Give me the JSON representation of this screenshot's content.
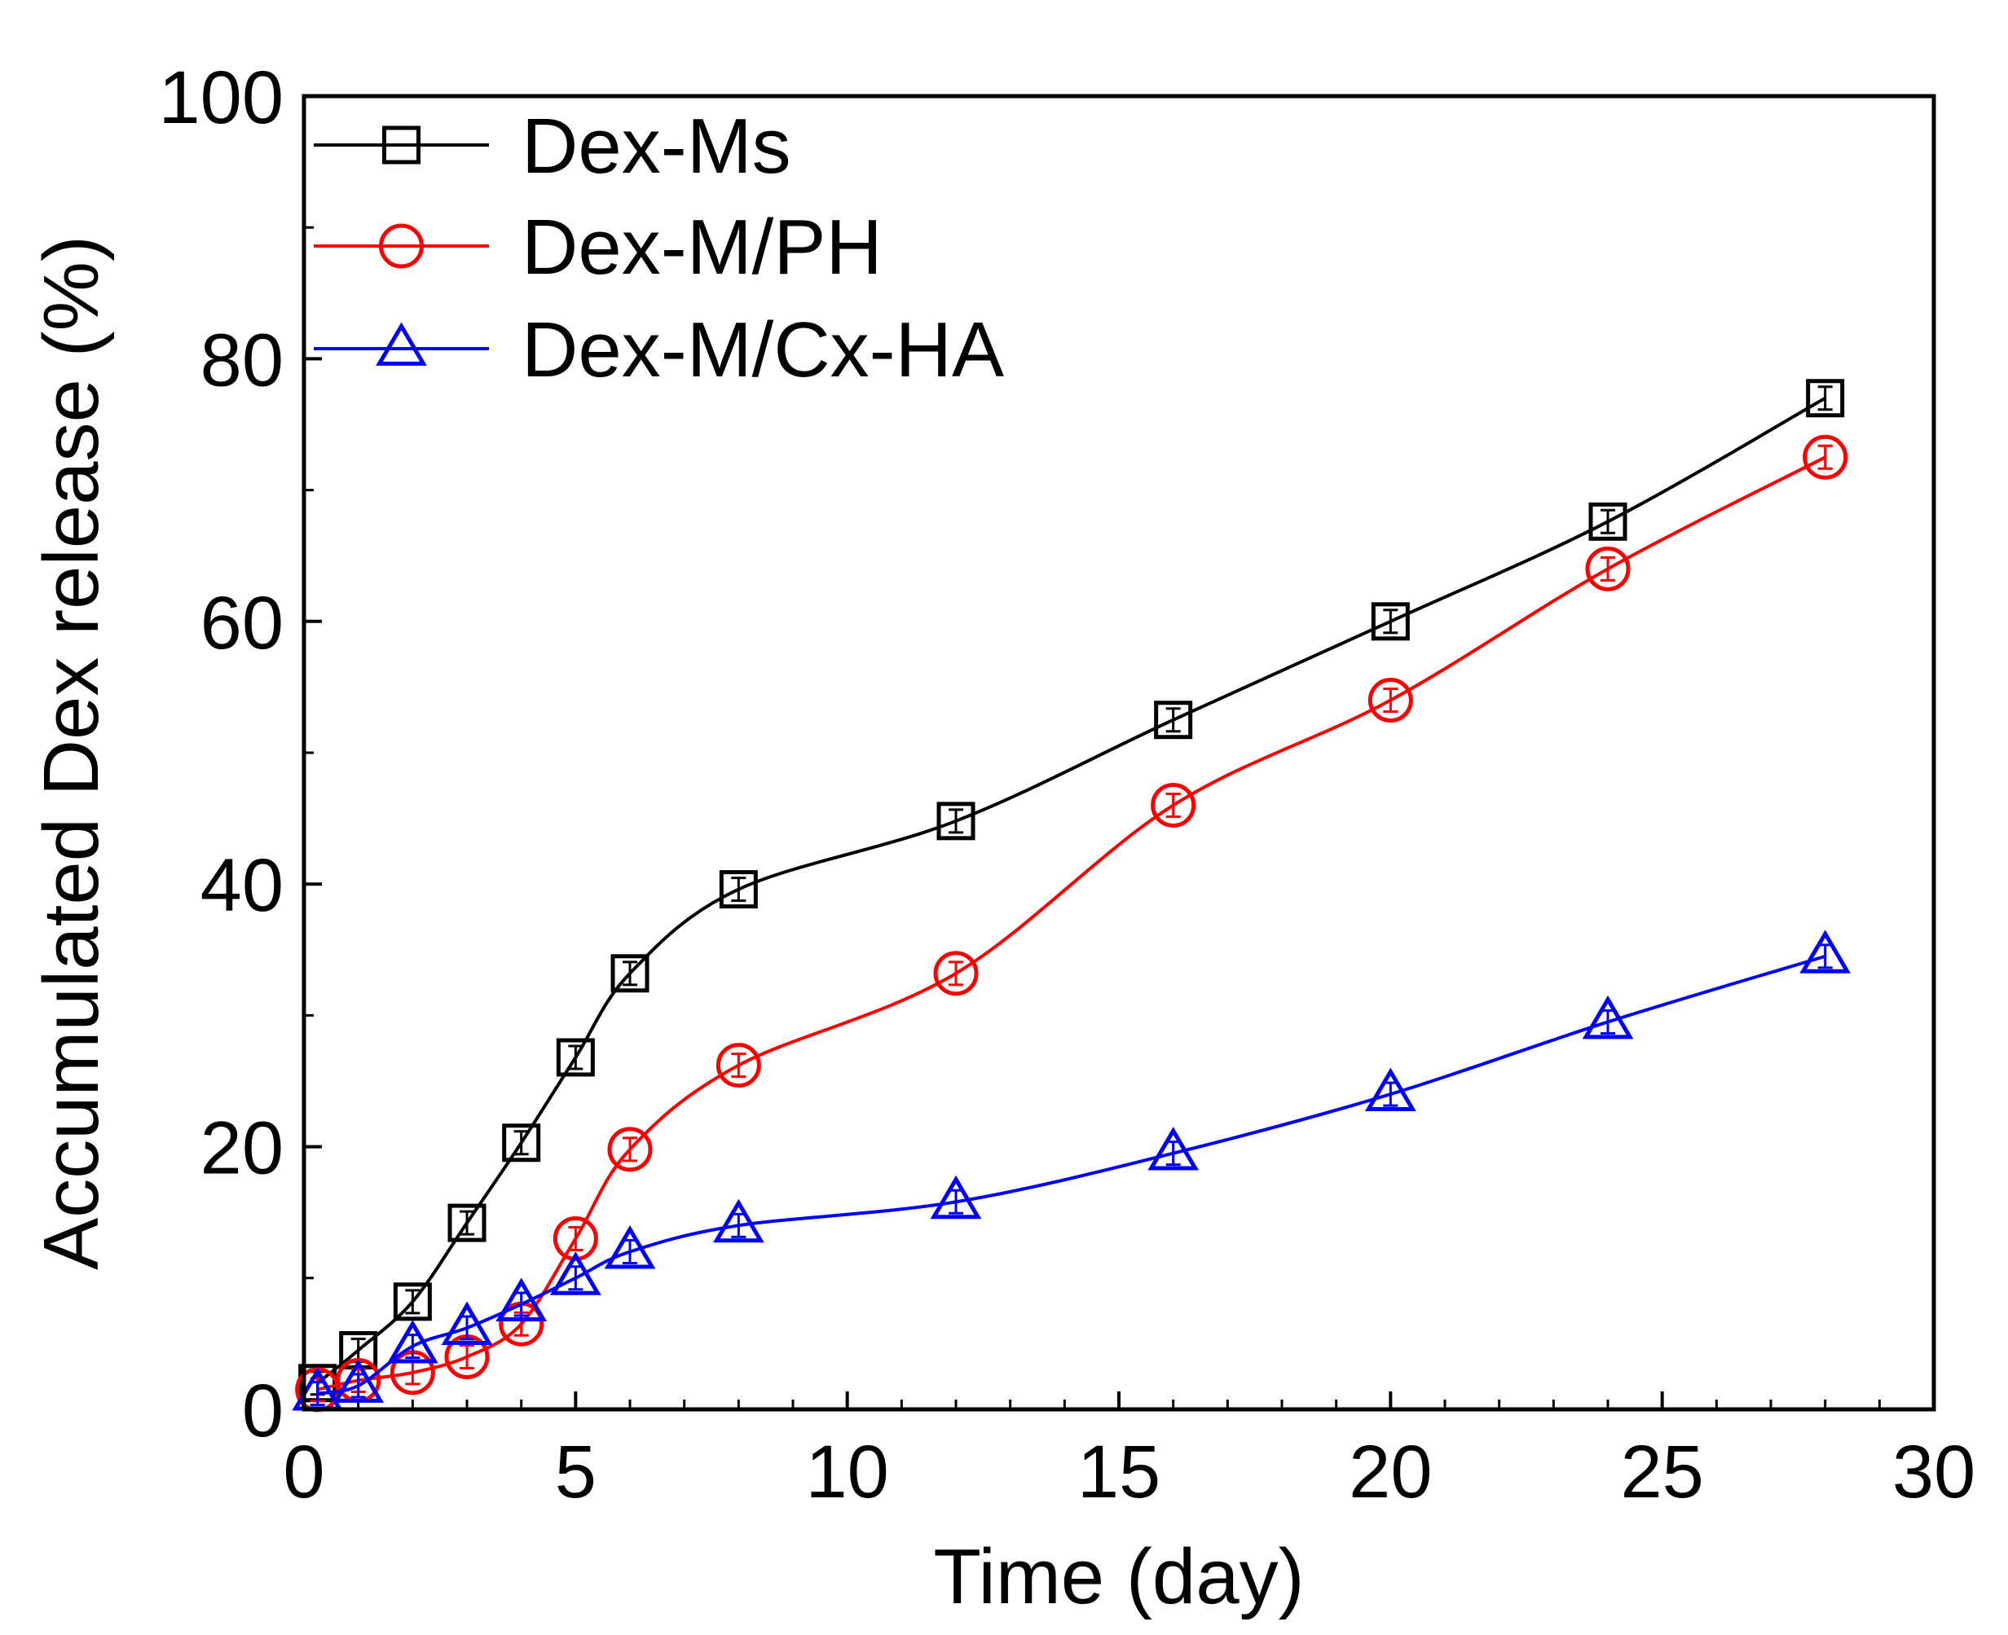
{
  "chart_data": {
    "type": "line",
    "title": "",
    "xlabel": "Time (day)",
    "ylabel": "Accumulated Dex release (%)",
    "xlim": [
      0,
      30
    ],
    "ylim": [
      0,
      100
    ],
    "xticks": [
      0,
      5,
      10,
      15,
      20,
      25,
      30
    ],
    "yticks": [
      0,
      20,
      40,
      60,
      80,
      100
    ],
    "xtick_labels": [
      "0",
      "5",
      "10",
      "15",
      "20",
      "25",
      "30"
    ],
    "ytick_labels": [
      "0",
      "20",
      "40",
      "60",
      "80",
      "100"
    ],
    "grid": false,
    "legend": "top-left",
    "x": [
      0.25,
      1,
      2,
      3,
      4,
      5,
      6,
      8,
      12,
      16,
      20,
      24,
      28
    ],
    "series": [
      {
        "name": "Dex-Ms",
        "color": "#000000",
        "marker": "square",
        "values": [
          2.0,
          4.5,
          8.2,
          14.2,
          20.3,
          26.8,
          33.2,
          39.6,
          44.8,
          52.5,
          60.0,
          67.6,
          77.0
        ]
      },
      {
        "name": "Dex-M/PH",
        "color": "#ff0000",
        "marker": "circle",
        "values": [
          1.5,
          2.2,
          2.8,
          4.0,
          6.5,
          13.0,
          19.8,
          26.2,
          33.2,
          46.0,
          54.0,
          64.0,
          72.5
        ]
      },
      {
        "name": "Dex-M/Cx-HA",
        "color": "#0000ff",
        "marker": "triangle",
        "values": [
          1.2,
          1.8,
          4.8,
          6.2,
          8.0,
          10.0,
          12.0,
          14.0,
          15.8,
          19.5,
          24.0,
          29.5,
          34.5
        ]
      }
    ]
  }
}
